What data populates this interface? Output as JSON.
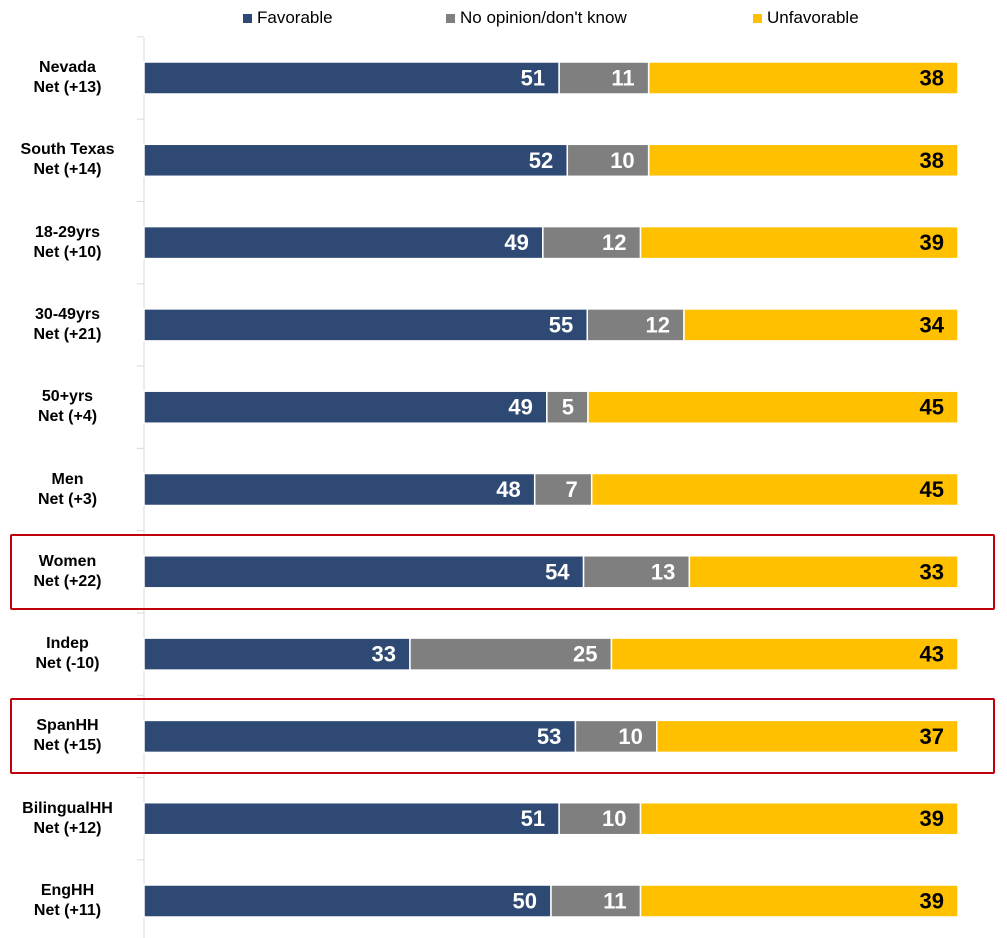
{
  "chart_data": {
    "type": "bar",
    "orientation": "horizontal",
    "stacked": true,
    "normalized": true,
    "legend_position": "top",
    "grid": false,
    "colors": {
      "Favorable": "#2e4a74",
      "No opinion/don't know": "#7f7f7f",
      "Unfavorable": "#ffc000",
      "highlight": "#c0000b"
    },
    "categories": [
      {
        "line1": "Nevada",
        "line2": "Net (+13)",
        "highlight": false
      },
      {
        "line1": "South Texas",
        "line2": "Net (+14)",
        "highlight": false
      },
      {
        "line1": "18-29yrs",
        "line2": "Net (+10)",
        "highlight": false
      },
      {
        "line1": "30-49yrs",
        "line2": "Net (+21)",
        "highlight": false
      },
      {
        "line1": "50+yrs",
        "line2": "Net (+4)",
        "highlight": false
      },
      {
        "line1": "Men",
        "line2": "Net (+3)",
        "highlight": false
      },
      {
        "line1": "Women",
        "line2": "Net (+22)",
        "highlight": true
      },
      {
        "line1": "Indep",
        "line2": "Net (-10)",
        "highlight": false
      },
      {
        "line1": "SpanHH",
        "line2": "Net (+15)",
        "highlight": true
      },
      {
        "line1": "BilingualHH",
        "line2": "Net (+12)",
        "highlight": false
      },
      {
        "line1": "EngHH",
        "line2": "Net (+11)",
        "highlight": false
      }
    ],
    "series": [
      {
        "name": "Favorable",
        "values": [
          51,
          52,
          49,
          55,
          49,
          48,
          54,
          33,
          53,
          51,
          50
        ]
      },
      {
        "name": "No opinion/don't know",
        "values": [
          11,
          10,
          12,
          12,
          5,
          7,
          13,
          25,
          10,
          10,
          11
        ]
      },
      {
        "name": "Unfavorable",
        "values": [
          38,
          38,
          39,
          34,
          45,
          45,
          33,
          43,
          37,
          39,
          39
        ]
      }
    ]
  }
}
